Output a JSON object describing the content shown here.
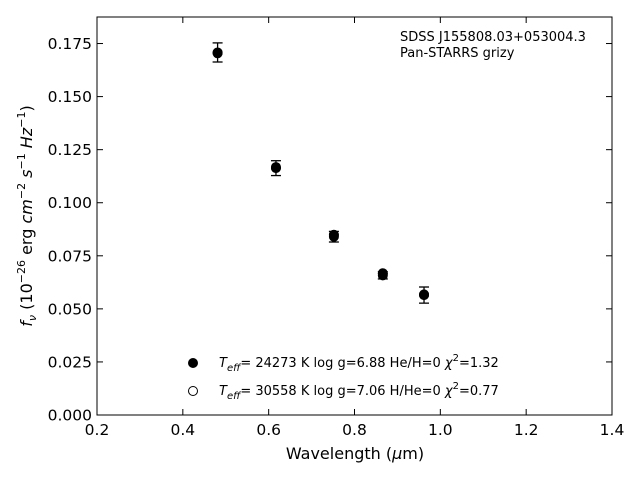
{
  "chart_data": {
    "type": "scatter",
    "xlabel_main": "Wavelength (",
    "xlabel_mu": "μ",
    "xlabel_tail": "m)",
    "ylabel": {
      "f": "f",
      "nu": "ν",
      "open": " (10",
      "exp26": "−26",
      "erg": " erg ",
      "cm": "cm",
      "exp2": "−2",
      "s": " s",
      "exp1": "−1",
      "hz": " Hz",
      "close": ")"
    },
    "xlim": [
      0.2,
      1.4
    ],
    "ylim": [
      0.0,
      0.1875
    ],
    "x_ticks": [
      0.2,
      0.4,
      0.6,
      0.8,
      1.0,
      1.2,
      1.4
    ],
    "x_tick_labels": [
      "0.2",
      "0.4",
      "0.6",
      "0.8",
      "1.0",
      "1.2",
      "1.4"
    ],
    "y_ticks": [
      0.0,
      0.025,
      0.05,
      0.075,
      0.1,
      0.125,
      0.15,
      0.175
    ],
    "y_tick_labels": [
      "0.000",
      "0.025",
      "0.050",
      "0.075",
      "0.100",
      "0.125",
      "0.150",
      "0.175"
    ],
    "annotation": [
      "SDSS J155808.03+053004.3",
      "Pan-STARRS grizy"
    ],
    "grid": false,
    "legend_position": "bottom-center",
    "observed": {
      "x": [
        0.481,
        0.617,
        0.752,
        0.866,
        0.962
      ],
      "y": [
        0.1708,
        0.1163,
        0.084,
        0.0658,
        0.0565
      ],
      "err": [
        0.0045,
        0.0035,
        0.0025,
        0.0017,
        0.0038
      ]
    },
    "series": [
      {
        "name": "Teff= 24273 K  log g=6.88  He/H=0  χ2=1.32",
        "teff_value": "= 24273 K  log g=6.88  He/H=0  ",
        "chi2_value": "=1.32",
        "marker": "filled",
        "x": [
          0.481,
          0.617,
          0.752,
          0.866,
          0.962
        ],
        "y": [
          0.1706,
          0.1168,
          0.0849,
          0.0668,
          0.0568
        ]
      },
      {
        "name": "Teff= 30558 K  log g=7.06  H/He=0  χ2=0.77",
        "teff_value": "= 30558 K  log g=7.06  H/He=0  ",
        "chi2_value": "=0.77",
        "marker": "open",
        "x": [
          0.481,
          0.617,
          0.752,
          0.866,
          0.962
        ],
        "y": [
          0.1704,
          0.1165,
          0.0848,
          0.0666,
          0.0566
        ]
      }
    ],
    "legend_symbols": {
      "T": "T",
      "eff": "eff",
      "chi": "χ",
      "two": "2"
    }
  }
}
